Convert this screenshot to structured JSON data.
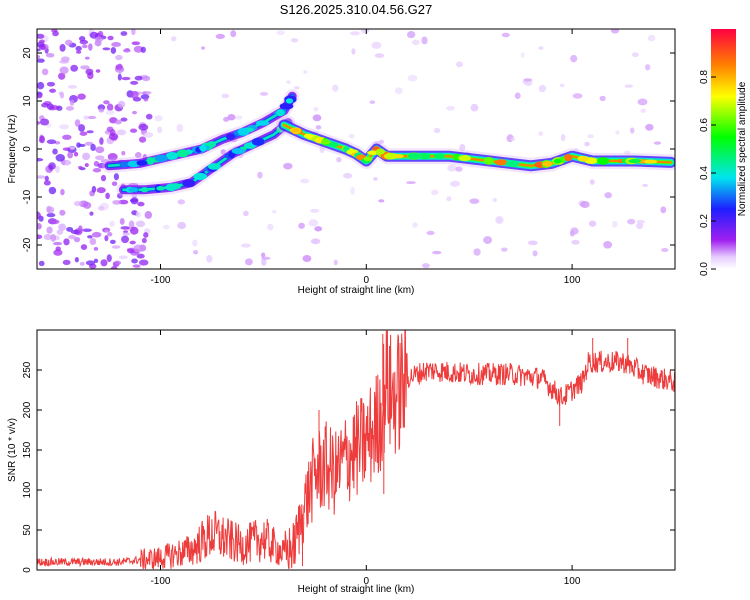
{
  "title": "S126.2025.310.04.56.G27",
  "chart_data": [
    {
      "type": "heatmap",
      "name": "spectrogram",
      "xlabel": "Height of straight line (km)",
      "ylabel": "Frequency (Hz)",
      "xlim": [
        -160,
        150
      ],
      "ylim": [
        -25,
        25
      ],
      "xticks": [
        -100,
        0,
        100
      ],
      "yticks": [
        -20,
        -10,
        0,
        10,
        20
      ],
      "colorbar": {
        "label": "Normalized spectral amplitude",
        "range": [
          0,
          1
        ],
        "ticks": [
          "0.0",
          "0.2",
          "0.4",
          "0.6",
          "0.8"
        ],
        "tick_values": [
          0.0,
          0.2,
          0.4,
          0.6,
          0.8
        ]
      },
      "tracks": [
        {
          "name": "upper branch",
          "x": [
            -125,
            -110,
            -100,
            -90,
            -80,
            -70,
            -60,
            -50,
            -40,
            -36
          ],
          "y": [
            -3.5,
            -3.0,
            -2.0,
            -1.0,
            0.0,
            2.0,
            3.5,
            5.5,
            8.0,
            11.0
          ],
          "amplitude": 0.45
        },
        {
          "name": "lower branch",
          "x": [
            -118,
            -108,
            -95,
            -85,
            -75,
            -65,
            -55,
            -45,
            -38
          ],
          "y": [
            -8.5,
            -8.5,
            -8.0,
            -7.0,
            -4.0,
            -1.0,
            1.0,
            3.0,
            5.5
          ],
          "amplitude": 0.45
        },
        {
          "name": "main track",
          "x": [
            -40,
            -30,
            -20,
            -10,
            -5,
            0,
            5,
            10,
            20,
            40,
            60,
            80,
            90,
            100,
            110,
            130,
            148
          ],
          "y": [
            5.0,
            3.0,
            1.5,
            0.0,
            -1.0,
            -2.5,
            0.0,
            -1.5,
            -1.5,
            -1.5,
            -2.5,
            -3.5,
            -3.0,
            -1.5,
            -2.5,
            -2.5,
            -2.8
          ],
          "amplitude": 0.9
        }
      ]
    },
    {
      "type": "line",
      "name": "snr",
      "xlabel": "Height of straight line (km)",
      "ylabel": "SNR (10 * v/v)",
      "xlim": [
        -160,
        150
      ],
      "ylim": [
        0,
        300
      ],
      "xticks": [
        -100,
        0,
        100
      ],
      "yticks": [
        0,
        50,
        100,
        150,
        200,
        250
      ],
      "color": "#ee3b3b",
      "envelope": {
        "x": [
          -160,
          -120,
          -100,
          -85,
          -75,
          -60,
          -50,
          -40,
          -35,
          -30,
          -25,
          -20,
          -15,
          -10,
          -5,
          0,
          5,
          8,
          10,
          12,
          15,
          20,
          30,
          50,
          70,
          85,
          95,
          100,
          105,
          108,
          115,
          125,
          135,
          150
        ],
        "y": [
          10,
          10,
          15,
          25,
          45,
          30,
          40,
          20,
          30,
          80,
          120,
          130,
          120,
          140,
          150,
          160,
          180,
          205,
          250,
          215,
          220,
          240,
          250,
          245,
          245,
          240,
          215,
          225,
          235,
          260,
          260,
          260,
          245,
          235
        ]
      },
      "spikes": [
        {
          "x": 8,
          "y": 295
        },
        {
          "x": 8.5,
          "y": 95
        },
        {
          "x": -23,
          "y": 200
        },
        {
          "x": -31,
          "y": 5
        },
        {
          "x": 110,
          "y": 290
        },
        {
          "x": 127,
          "y": 290
        },
        {
          "x": 94,
          "y": 180
        }
      ]
    }
  ]
}
